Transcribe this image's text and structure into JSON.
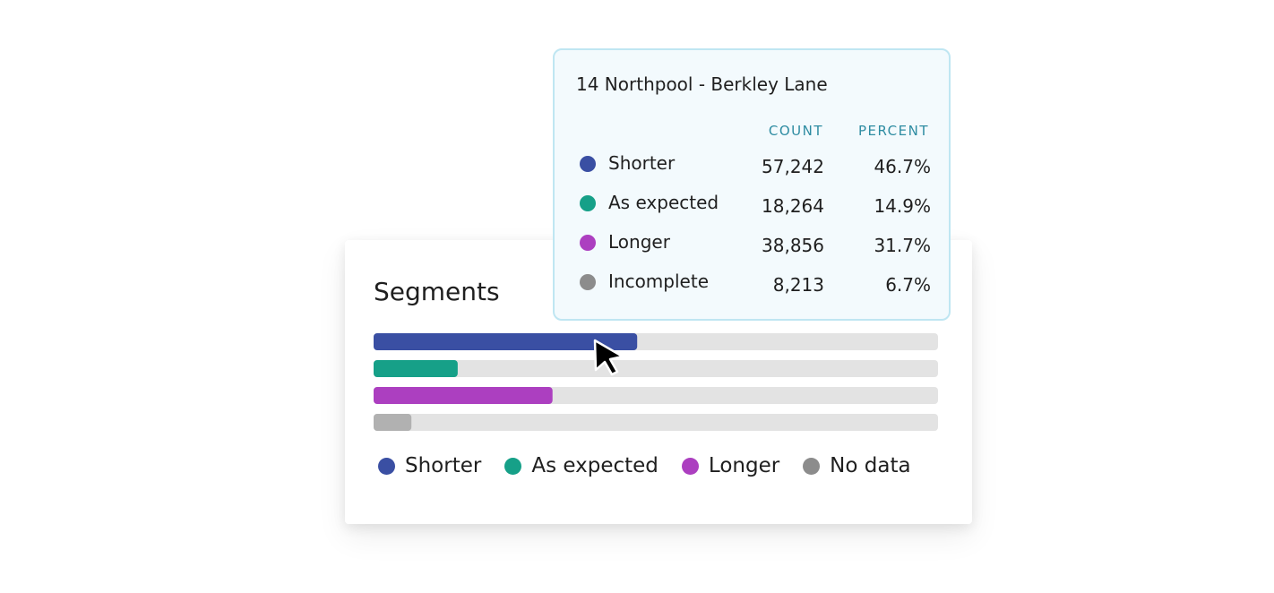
{
  "chart_data": {
    "type": "bar",
    "orientation": "horizontal",
    "title": "Segments",
    "categories": [
      "Shorter",
      "As expected",
      "Longer",
      "No data"
    ],
    "values": [
      46.7,
      14.9,
      31.7,
      6.7
    ],
    "unit": "%",
    "xlim": [
      0,
      100
    ],
    "grid": false,
    "legend_position": "bottom",
    "colors": [
      "#3a4fa3",
      "#16a088",
      "#ac3fc0",
      "#b1b1b1"
    ],
    "legend": [
      {
        "label": "Shorter",
        "color": "#3a4fa3"
      },
      {
        "label": "As expected",
        "color": "#16a088"
      },
      {
        "label": "Longer",
        "color": "#ac3fc0"
      },
      {
        "label": "No data",
        "color": "#8c8c8c"
      }
    ]
  },
  "track_color": "#e3e3e3",
  "tooltip": {
    "title": "14 Northpool - Berkley Lane",
    "count_header": "COUNT",
    "percent_header": "PERCENT",
    "rows": [
      {
        "label": "Shorter",
        "count": "57,242",
        "percent": "46.7%",
        "color": "#3a4fa3"
      },
      {
        "label": "As expected",
        "count": "18,264",
        "percent": "14.9%",
        "color": "#16a088"
      },
      {
        "label": "Longer",
        "count": "38,856",
        "percent": "31.7%",
        "color": "#ac3fc0"
      },
      {
        "label": "Incomplete",
        "count": "8,213",
        "percent": "6.7%",
        "color": "#8c8c8c"
      }
    ]
  },
  "cursor_icon": "arrow-pointer-icon"
}
